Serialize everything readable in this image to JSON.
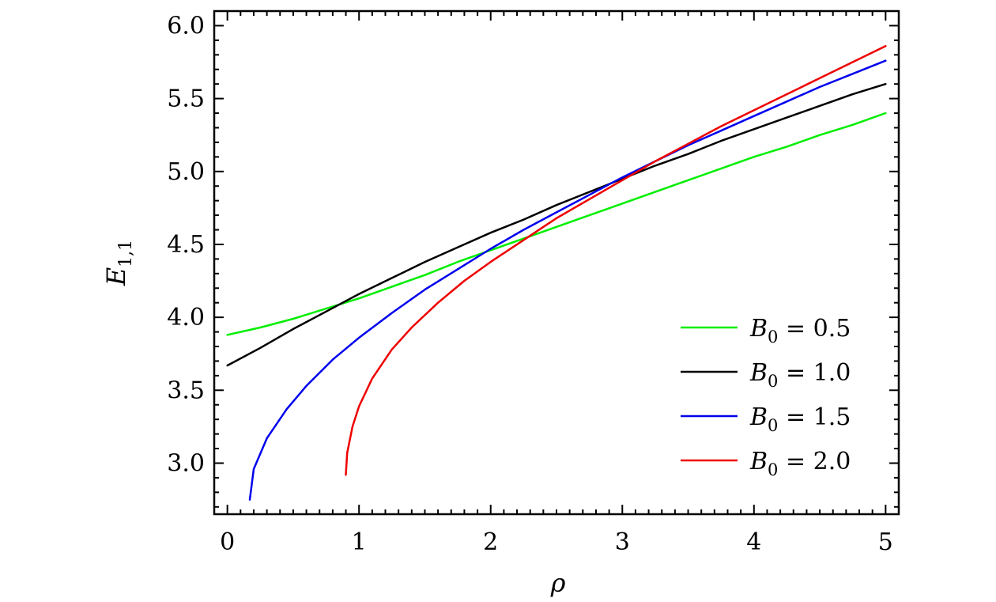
{
  "chart_data": {
    "type": "line",
    "xlabel": "ρ",
    "ylabel": "E_{1,1}",
    "ylabel_main": "E",
    "ylabel_sub": "1,1",
    "xlim": [
      -0.1,
      5.1
    ],
    "ylim": [
      2.65,
      6.1
    ],
    "xticks": [
      0,
      1,
      2,
      3,
      4,
      5
    ],
    "xtick_labels": [
      "0",
      "1",
      "2",
      "3",
      "4",
      "5"
    ],
    "yticks": [
      3.0,
      3.5,
      4.0,
      4.5,
      5.0,
      5.5,
      6.0
    ],
    "ytick_labels": [
      "3.0",
      "3.5",
      "4.0",
      "4.5",
      "5.0",
      "5.5",
      "6.0"
    ],
    "grid": false,
    "legend_position": "bottom-right",
    "series": [
      {
        "name": "B_0 = 0.5",
        "legend_main": "B",
        "legend_sub": "0",
        "legend_value": " = 0.5",
        "color": "#00ee00",
        "x": [
          0,
          0.25,
          0.5,
          0.75,
          1.0,
          1.25,
          1.5,
          1.75,
          2.0,
          2.25,
          2.5,
          2.75,
          3.0,
          3.25,
          3.5,
          3.75,
          4.0,
          4.25,
          4.5,
          4.75,
          5.0
        ],
        "y": [
          3.88,
          3.93,
          3.99,
          4.06,
          4.13,
          4.21,
          4.29,
          4.38,
          4.46,
          4.54,
          4.62,
          4.7,
          4.78,
          4.86,
          4.94,
          5.02,
          5.1,
          5.17,
          5.25,
          5.32,
          5.4
        ]
      },
      {
        "name": "B_0 = 1.0",
        "legend_main": "B",
        "legend_sub": "0",
        "legend_value": " = 1.0",
        "color": "#000000",
        "x": [
          0,
          0.25,
          0.5,
          0.75,
          1.0,
          1.25,
          1.5,
          1.75,
          2.0,
          2.25,
          2.5,
          2.75,
          3.0,
          3.25,
          3.5,
          3.75,
          4.0,
          4.25,
          4.5,
          4.75,
          5.0
        ],
        "y": [
          3.67,
          3.79,
          3.92,
          4.04,
          4.16,
          4.27,
          4.38,
          4.48,
          4.58,
          4.67,
          4.77,
          4.86,
          4.95,
          5.04,
          5.12,
          5.21,
          5.29,
          5.37,
          5.45,
          5.53,
          5.6
        ]
      },
      {
        "name": "B_0 = 1.5",
        "legend_main": "B",
        "legend_sub": "0",
        "legend_value": " = 1.5",
        "color": "#0000ee",
        "x": [
          0.17,
          0.2,
          0.3,
          0.45,
          0.6,
          0.8,
          1.0,
          1.25,
          1.5,
          1.75,
          2.0,
          2.25,
          2.5,
          2.75,
          3.0,
          3.25,
          3.5,
          3.75,
          4.0,
          4.25,
          4.5,
          4.75,
          5.0
        ],
        "y": [
          2.75,
          2.96,
          3.17,
          3.37,
          3.53,
          3.71,
          3.86,
          4.03,
          4.19,
          4.33,
          4.47,
          4.6,
          4.72,
          4.84,
          4.96,
          5.07,
          5.18,
          5.28,
          5.38,
          5.48,
          5.58,
          5.67,
          5.76
        ]
      },
      {
        "name": "B_0 = 2.0",
        "legend_main": "B",
        "legend_sub": "0",
        "legend_value": " = 2.0",
        "color": "#ee0000",
        "x": [
          0.9,
          0.91,
          0.95,
          1.0,
          1.1,
          1.25,
          1.4,
          1.6,
          1.8,
          2.0,
          2.25,
          2.5,
          2.75,
          3.0,
          3.25,
          3.5,
          3.75,
          4.0,
          4.25,
          4.5,
          4.75,
          5.0
        ],
        "y": [
          2.92,
          3.07,
          3.25,
          3.39,
          3.58,
          3.78,
          3.93,
          4.1,
          4.25,
          4.38,
          4.53,
          4.68,
          4.81,
          4.94,
          5.07,
          5.19,
          5.31,
          5.42,
          5.53,
          5.64,
          5.75,
          5.86
        ]
      }
    ]
  }
}
